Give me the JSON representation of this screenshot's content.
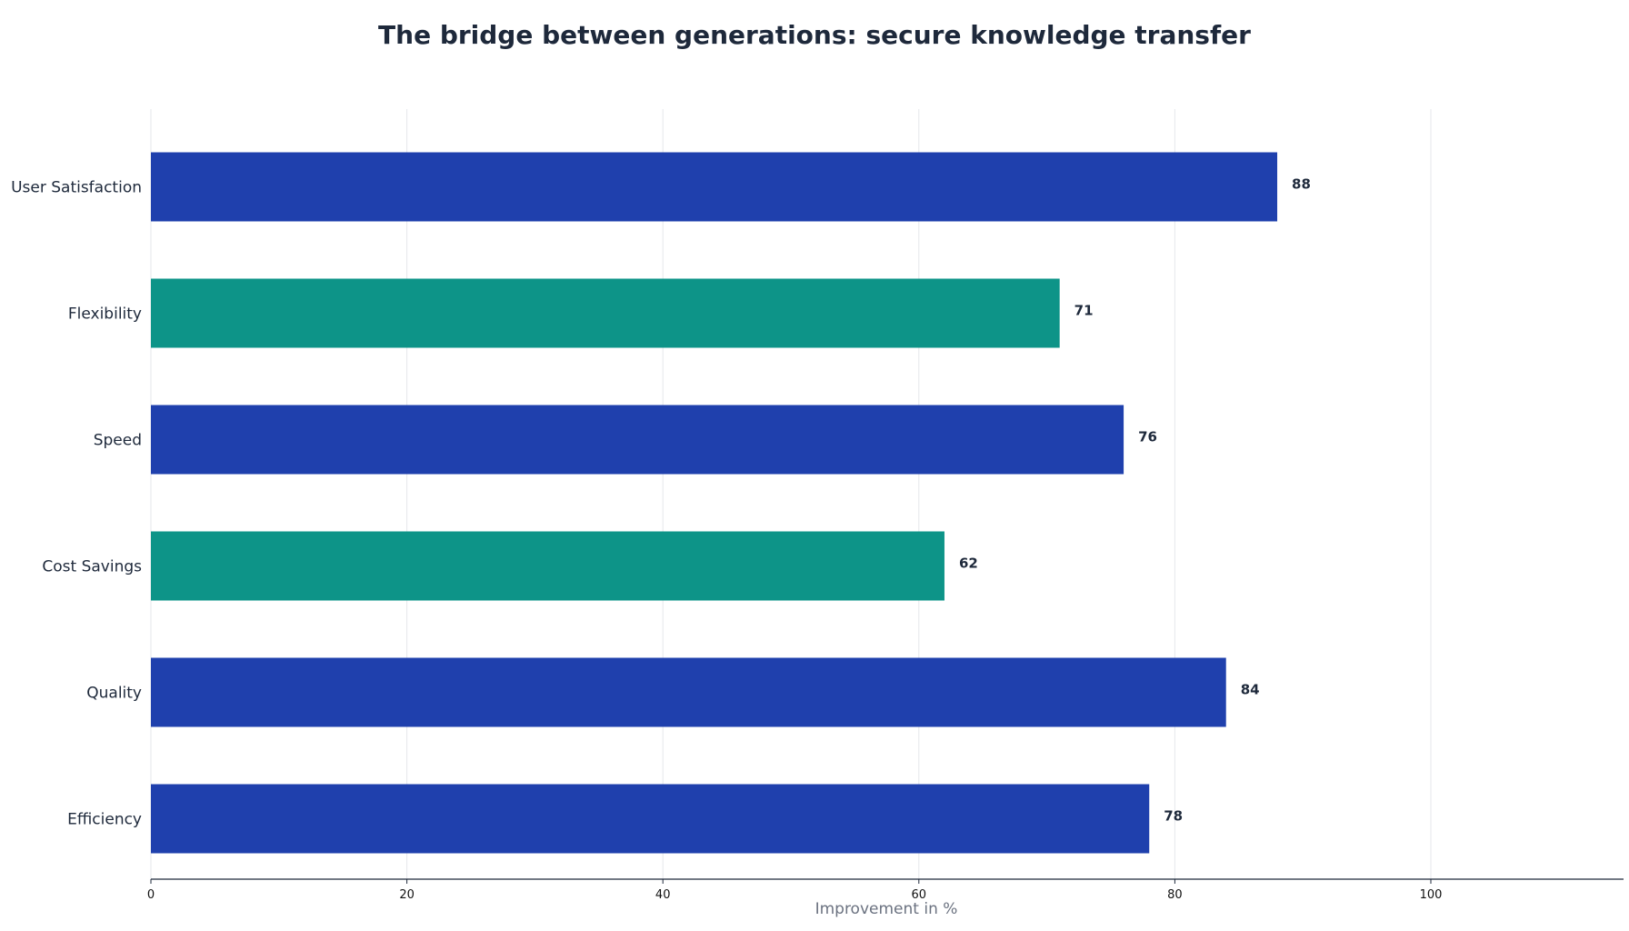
{
  "chart_data": {
    "type": "bar",
    "orientation": "horizontal",
    "title": "The bridge between generations: secure knowledge transfer",
    "xlabel": "Improvement in %",
    "ylabel": "",
    "xlim": [
      0,
      115
    ],
    "xticks": [
      0,
      20,
      40,
      60,
      80,
      100
    ],
    "grid": true,
    "categories": [
      "Efficiency",
      "Quality",
      "Cost Savings",
      "Speed",
      "Flexibility",
      "User Satisfaction"
    ],
    "values": [
      78,
      84,
      62,
      76,
      71,
      88
    ],
    "bar_colors": [
      "#1f40ad",
      "#1f40ad",
      "#0d9488",
      "#1f40ad",
      "#0d9488",
      "#1f40ad"
    ],
    "colors": {
      "primary": "#1f40ad",
      "accent": "#0d9488",
      "grid": "#e5e7eb",
      "axis": "#1e293b",
      "text": "#1e293b"
    }
  }
}
